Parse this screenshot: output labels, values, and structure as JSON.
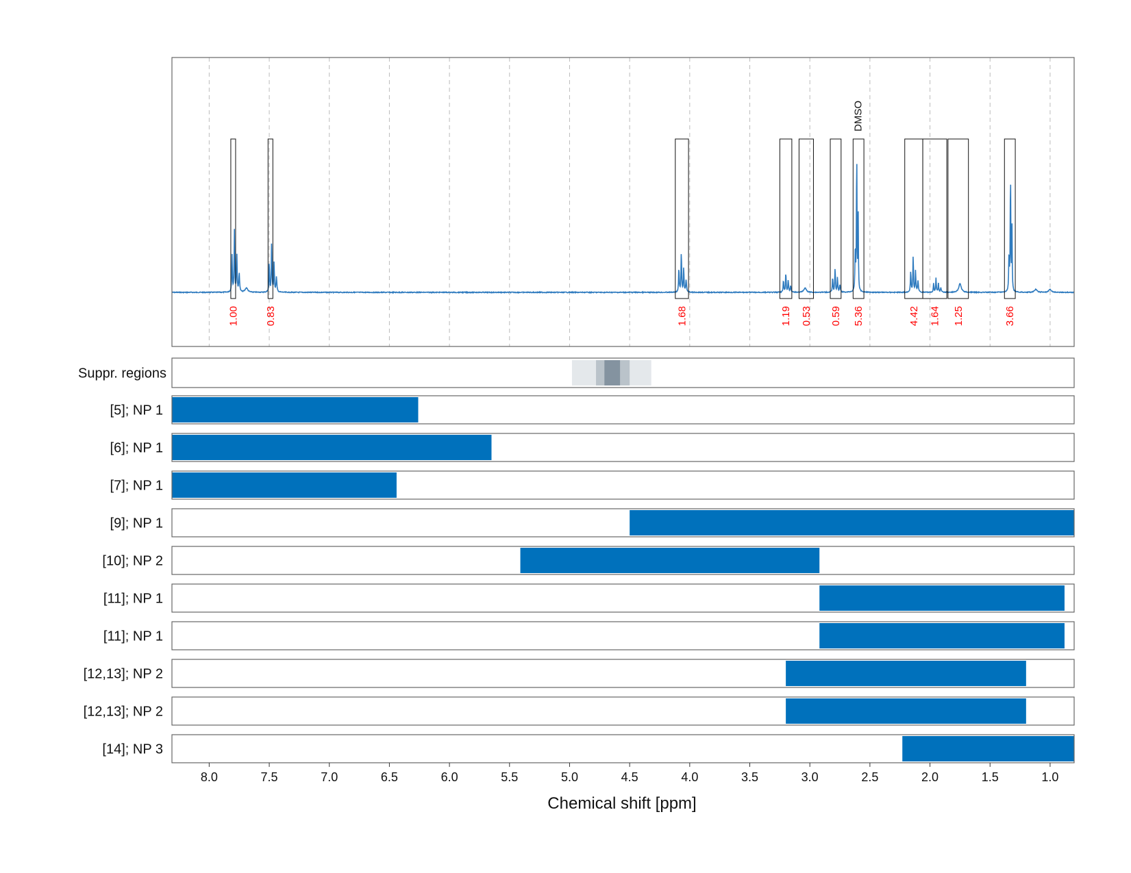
{
  "chart_data": {
    "type": "nmr-spectrum-with-range-bars",
    "xlabel": "Chemical shift [ppm]",
    "xlim": [
      8.31,
      0.8
    ],
    "x_ticks": [
      8.0,
      7.5,
      7.0,
      6.5,
      6.0,
      5.5,
      5.0,
      4.5,
      4.0,
      3.5,
      3.0,
      2.5,
      2.0,
      1.5,
      1.0
    ],
    "x_tick_labels": [
      "8.0",
      "7.5",
      "7.0",
      "6.5",
      "6.0",
      "5.5",
      "5.0",
      "4.5",
      "4.0",
      "3.5",
      "3.0",
      "2.5",
      "2.0",
      "1.5",
      "1.0"
    ],
    "grid": true,
    "colors": {
      "spectrum": "#2f7bbf",
      "bar": "#0071bc",
      "integral_label": "#ff0000",
      "grid": "#bbbbbb",
      "suppression": "#7a8b99"
    },
    "spectrum": {
      "peaks": [
        {
          "shift": 7.79,
          "height": 0.42,
          "label": "1.00"
        },
        {
          "shift": 7.69,
          "height": 0.03,
          "label": ""
        },
        {
          "shift": 7.48,
          "height": 0.34,
          "label": "0.83"
        },
        {
          "shift": 4.07,
          "height": 0.28,
          "label": "1.68"
        },
        {
          "shift": 3.2,
          "height": 0.14,
          "label": "1.19"
        },
        {
          "shift": 3.04,
          "height": 0.03,
          "label": "0.53"
        },
        {
          "shift": 2.79,
          "height": 0.17,
          "label": "0.59"
        },
        {
          "shift": 2.61,
          "height": 1.0,
          "label": "5.36"
        },
        {
          "shift": 2.14,
          "height": 0.25,
          "label": "4.42"
        },
        {
          "shift": 1.95,
          "height": 0.1,
          "label": "1.64"
        },
        {
          "shift": 1.75,
          "height": 0.06,
          "label": "1.25"
        },
        {
          "shift": 1.33,
          "height": 0.86,
          "label": "3.66"
        },
        {
          "shift": 1.12,
          "height": 0.02,
          "label": ""
        },
        {
          "shift": 1.0,
          "height": 0.02,
          "label": ""
        }
      ],
      "integration_regions": [
        {
          "from": 7.82,
          "to": 7.78,
          "integral": "1.00"
        },
        {
          "from": 7.51,
          "to": 7.47,
          "integral": "0.83"
        },
        {
          "from": 4.12,
          "to": 4.01,
          "integral": "1.68"
        },
        {
          "from": 3.25,
          "to": 3.15,
          "integral": "1.19"
        },
        {
          "from": 3.09,
          "to": 2.97,
          "integral": "0.53"
        },
        {
          "from": 2.83,
          "to": 2.74,
          "integral": "0.59"
        },
        {
          "from": 2.64,
          "to": 2.55,
          "integral": "5.36"
        },
        {
          "from": 2.21,
          "to": 2.06,
          "integral": "4.42"
        },
        {
          "from": 2.06,
          "to": 1.86,
          "integral": "1.64"
        },
        {
          "from": 1.85,
          "to": 1.68,
          "integral": "1.25"
        },
        {
          "from": 1.38,
          "to": 1.29,
          "integral": "3.66"
        }
      ],
      "annotations": [
        {
          "shift": 2.6,
          "text": "DMSO"
        }
      ]
    },
    "suppression_regions": {
      "label": "Suppr. regions",
      "bands": [
        {
          "from": 4.98,
          "to": 4.32,
          "shade": 0.2
        },
        {
          "from": 4.78,
          "to": 4.5,
          "shade": 0.4
        },
        {
          "from": 4.71,
          "to": 4.58,
          "shade": 0.85
        }
      ]
    },
    "ranges": [
      {
        "label": "[5]; NP 1",
        "from": 8.31,
        "to": 6.26
      },
      {
        "label": "[6]; NP 1",
        "from": 8.31,
        "to": 5.65
      },
      {
        "label": "[7]; NP 1",
        "from": 8.31,
        "to": 6.44
      },
      {
        "label": "[9]; NP 1",
        "from": 4.5,
        "to": 0.8
      },
      {
        "label": "[10]; NP 2",
        "from": 5.41,
        "to": 2.92
      },
      {
        "label": "[11]; NP 1",
        "from": 2.92,
        "to": 0.88
      },
      {
        "label": "[11]; NP 1",
        "from": 2.92,
        "to": 0.88
      },
      {
        "label": "[12,13]; NP 2",
        "from": 3.2,
        "to": 1.2
      },
      {
        "label": "[12,13]; NP 2",
        "from": 3.2,
        "to": 1.2
      },
      {
        "label": "[14]; NP 3",
        "from": 2.23,
        "to": 0.8
      }
    ]
  }
}
